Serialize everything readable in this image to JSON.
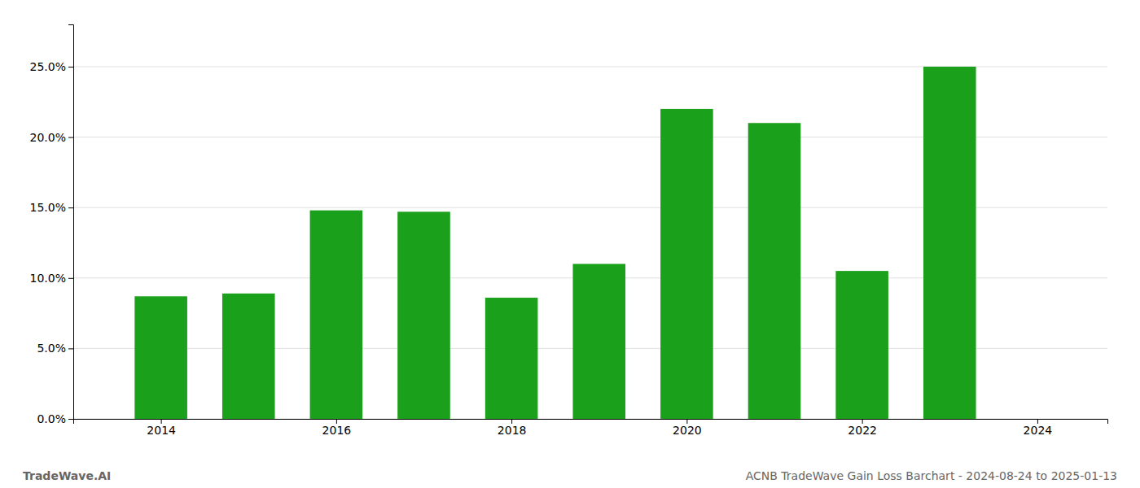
{
  "chart_data": {
    "type": "bar",
    "x": [
      2014,
      2015,
      2016,
      2017,
      2018,
      2019,
      2020,
      2021,
      2022,
      2023
    ],
    "values": [
      0.087,
      0.089,
      0.148,
      0.147,
      0.086,
      0.11,
      0.22,
      0.21,
      0.105,
      0.25
    ],
    "color": "#1aa01a",
    "xlim": [
      2013.0,
      2024.8
    ],
    "xticks": [
      2014,
      2016,
      2018,
      2020,
      2022,
      2024
    ],
    "ylim": [
      0,
      0.28
    ],
    "yticks": [
      {
        "value": 0.0,
        "label": "0.0%"
      },
      {
        "value": 0.05,
        "label": "5.0%"
      },
      {
        "value": 0.1,
        "label": "10.0%"
      },
      {
        "value": 0.15,
        "label": "15.0%"
      },
      {
        "value": 0.2,
        "label": "20.0%"
      },
      {
        "value": 0.25,
        "label": "25.0%"
      }
    ],
    "grid": true,
    "annotations": [
      "TradeWave.AI",
      "ACNB TradeWave Gain Loss Barchart - 2024-08-24 to 2025-01-13"
    ]
  }
}
